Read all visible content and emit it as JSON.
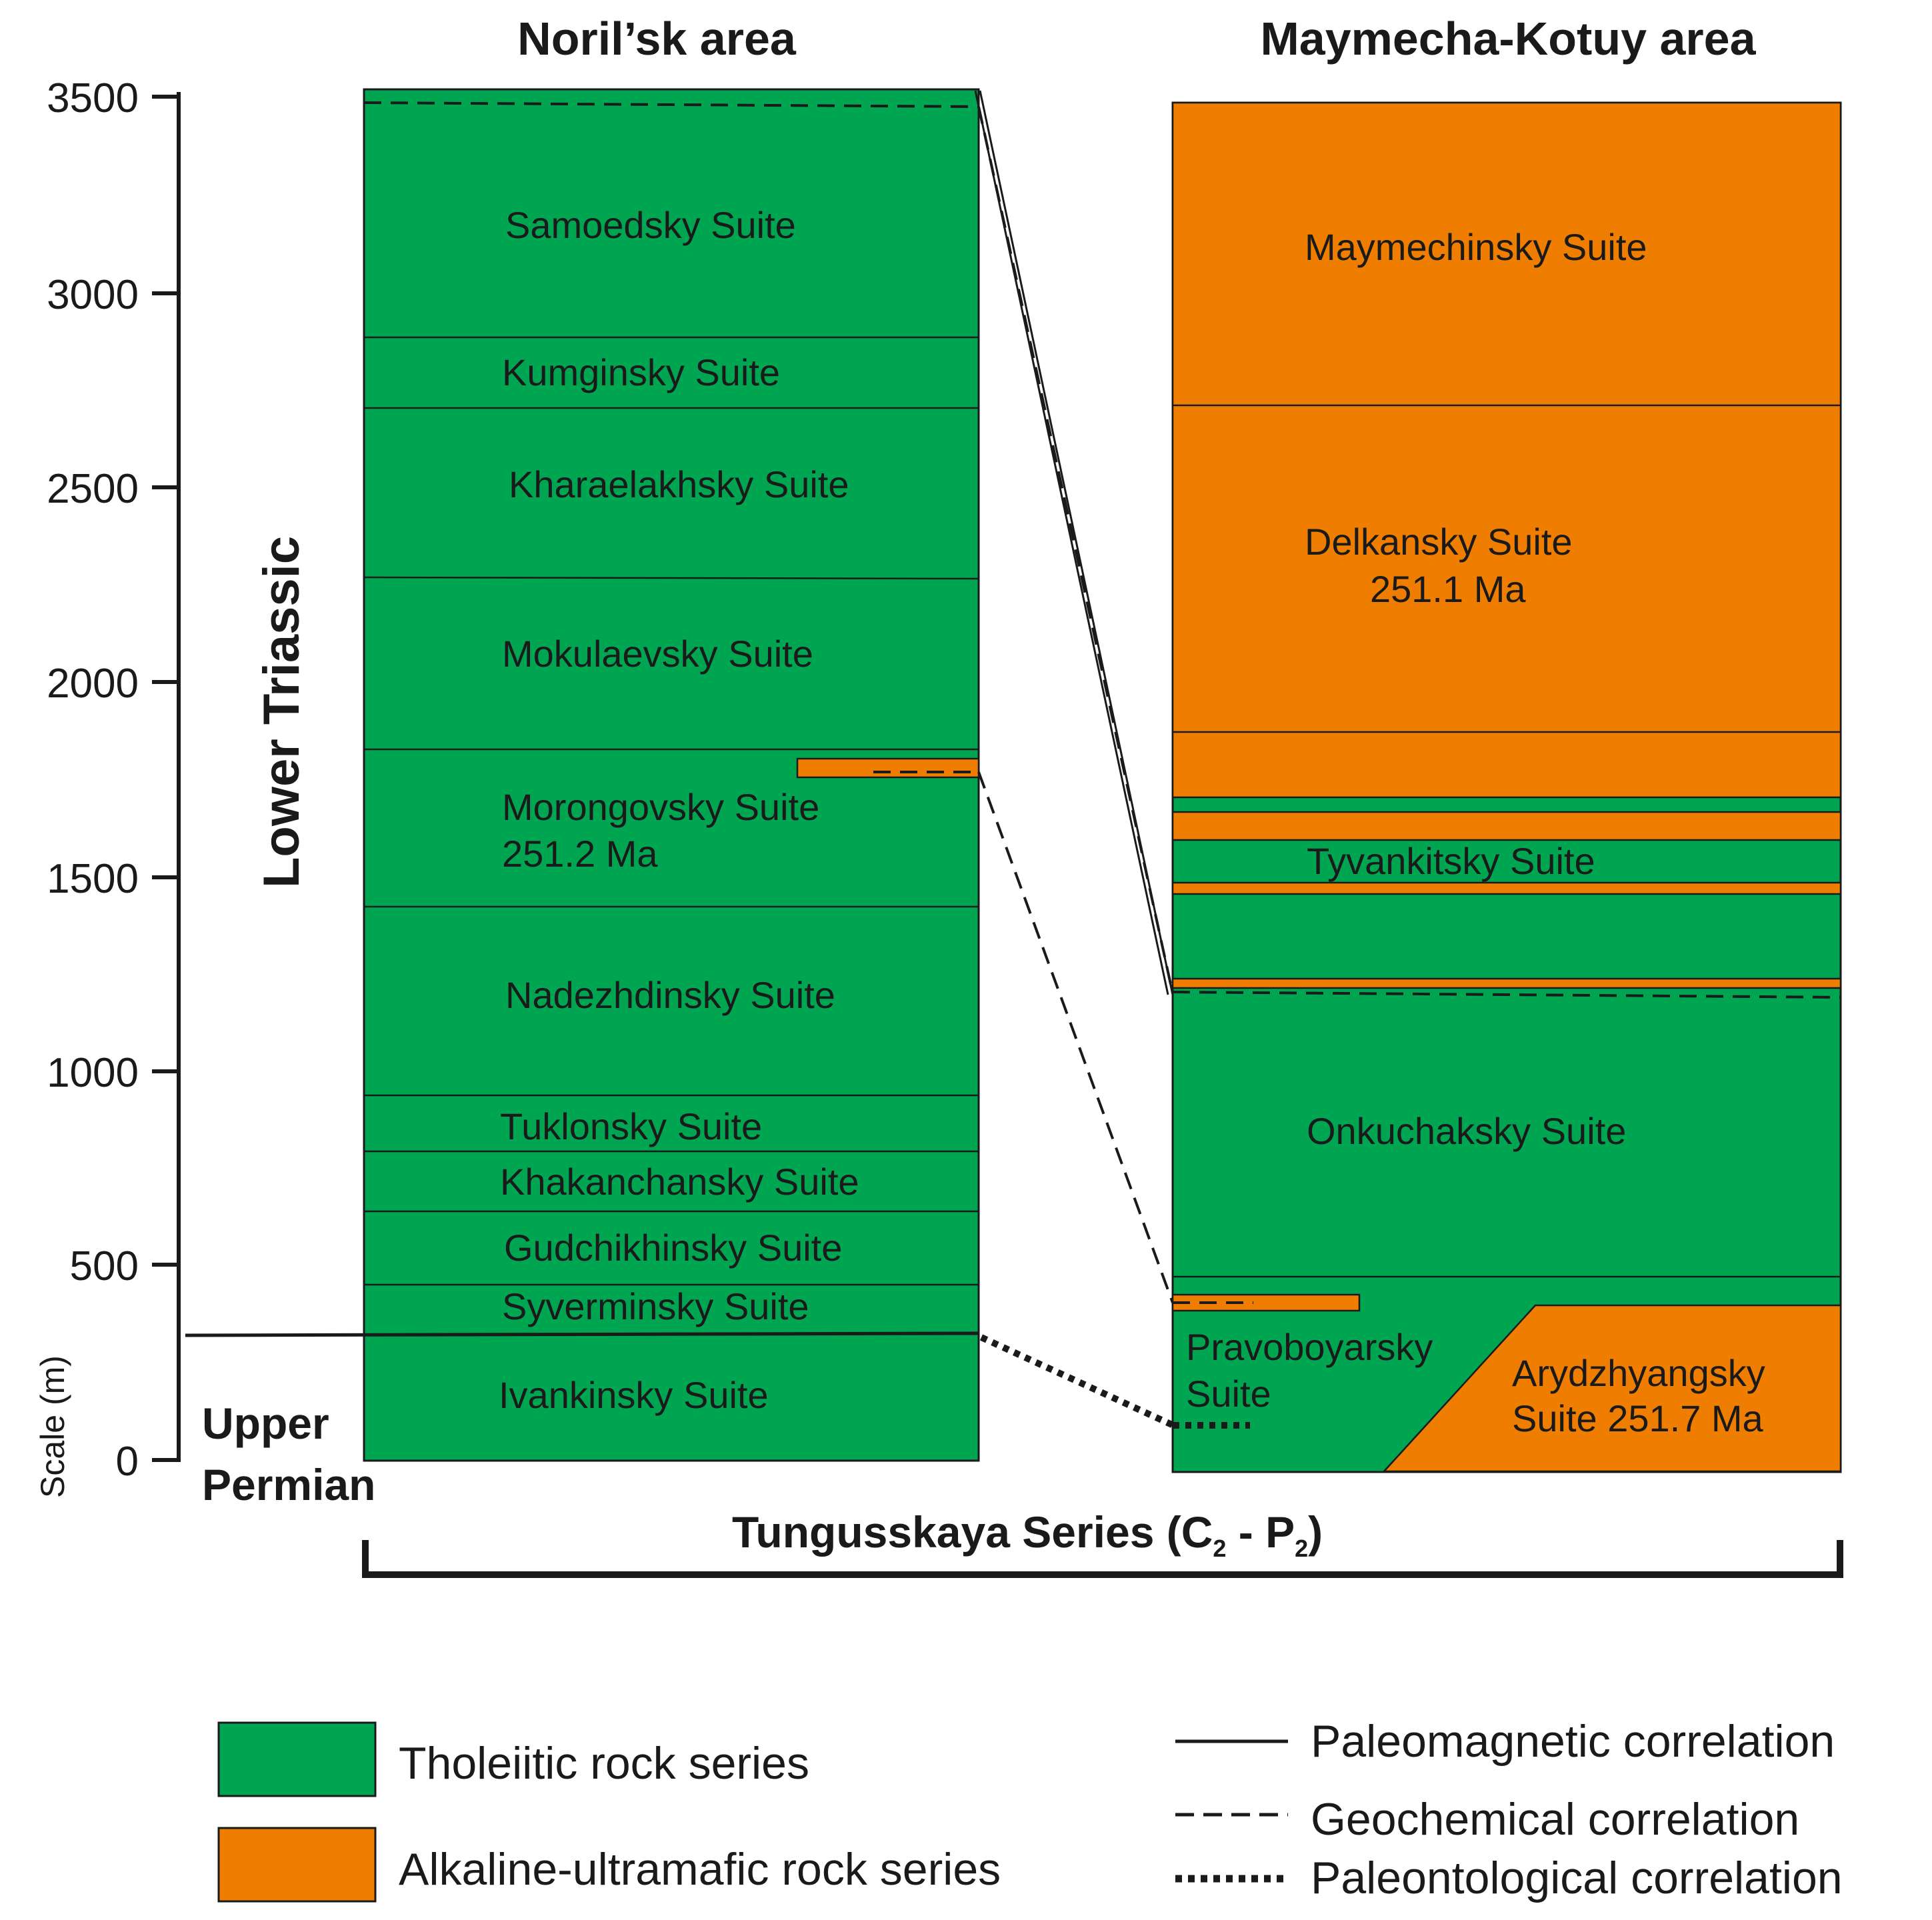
{
  "headings": {
    "noriisk": "Noril’sk area",
    "maymecha": "Maymecha-Kotuy area"
  },
  "scale": {
    "label": "Scale (m)",
    "ticks": [
      "0",
      "500",
      "1000",
      "1500",
      "2000",
      "2500",
      "3000",
      "3500"
    ]
  },
  "epochs": {
    "lower_triassic": "Lower Triassic",
    "upper_permian_line1": "Upper",
    "upper_permian_line2": "Permian"
  },
  "series_bracket": {
    "label_main": "Tungusskaya Series (C",
    "sub1": "2",
    "mid": " - P",
    "sub2": "2",
    "end": ")"
  },
  "colors": {
    "tholeiitic": "#00a551",
    "alkaline": "#ef7d00",
    "line": "#1a1a1a"
  },
  "noriisk_suites": [
    "Samoedsky Suite",
    "Kumginsky Suite",
    "Kharaelakhsky Suite",
    "Mokulaevsky Suite",
    "Morongovsky Suite",
    "251.2 Ma",
    "Nadezhdinsky Suite",
    "Tuklonsky Suite",
    "Khakanchansky Suite",
    "Gudchikhinsky Suite",
    "Syverminsky Suite",
    "Ivankinsky Suite"
  ],
  "maymecha_suites": [
    "Maymechinsky Suite",
    "Delkansky Suite",
    "251.1 Ma",
    "Tyvankitsky Suite",
    "Onkuchaksky Suite",
    "Pravoboyarsky",
    "Suite",
    "Arydzhyangsky",
    "Suite 251.7 Ma"
  ],
  "legend": {
    "tholeiitic": "Tholeiitic rock series",
    "alkaline": "Alkaline-ultramafic rock series",
    "paleomagnetic": "Paleomagnetic correlation",
    "geochemical": "Geochemical correlation",
    "paleontological": "Paleontological correlation"
  }
}
